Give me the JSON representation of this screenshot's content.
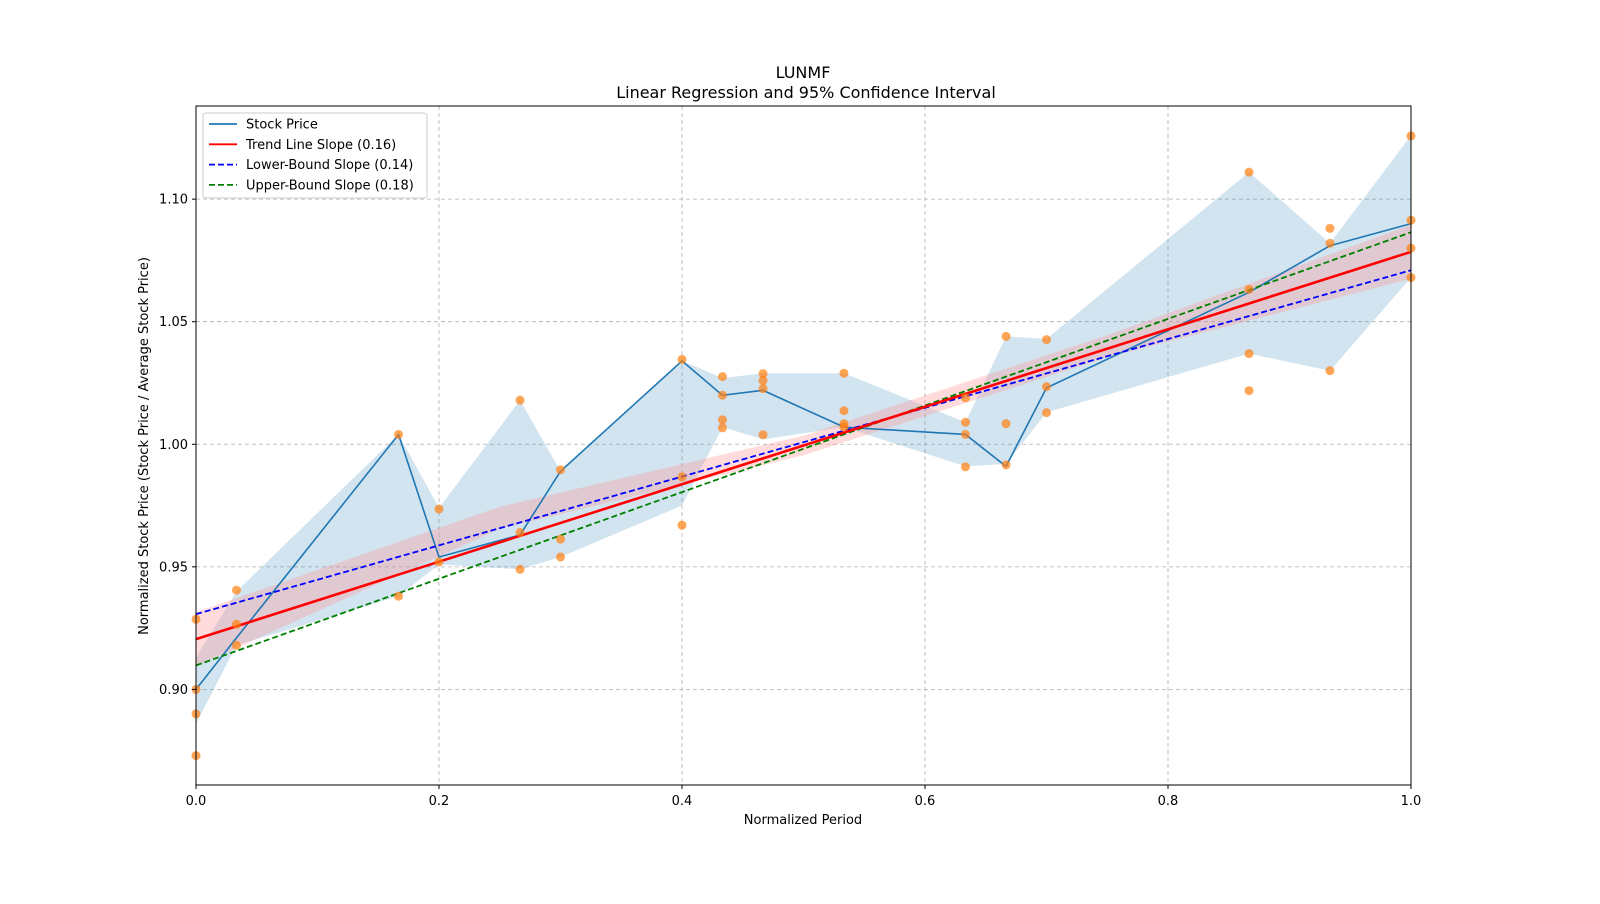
{
  "chart_data": {
    "type": "line",
    "title": "LUNMF",
    "subtitle": "Linear Regression and 95% Confidence Interval",
    "xlabel": "Normalized Period",
    "ylabel": "Normalized Stock Price (Stock Price / Average Stock Price)",
    "xlim": [
      0,
      1
    ],
    "ylim": [
      0.861,
      1.138
    ],
    "grid": true,
    "xticks": [
      0.0,
      0.2,
      0.4,
      0.6,
      0.8,
      1.0
    ],
    "xtick_labels": [
      "0.0",
      "0.2",
      "0.4",
      "0.6",
      "0.8",
      "1.0"
    ],
    "yticks": [
      0.9,
      0.95,
      1.0,
      1.05,
      1.1
    ],
    "ytick_labels": [
      "0.90",
      "0.95",
      "1.00",
      "1.05",
      "1.10"
    ],
    "legend_position": "top-left",
    "legend": [
      {
        "label": "Stock Price",
        "color": "#1f77b4",
        "style": "solid"
      },
      {
        "label": "Trend Line Slope (0.16)",
        "color": "#ff0000",
        "style": "solid"
      },
      {
        "label": "Lower-Bound Slope (0.14)",
        "color": "#0000ff",
        "style": "dashed"
      },
      {
        "label": "Upper-Bound Slope (0.18)",
        "color": "#008000",
        "style": "dashed"
      }
    ],
    "stock_price": {
      "x": [
        0,
        0.0333,
        0.1667,
        0.2,
        0.2667,
        0.3,
        0.4,
        0.4333,
        0.4667,
        0.5333,
        0.6333,
        0.6667,
        0.7,
        0.8667,
        0.9333,
        1.0
      ],
      "y": [
        0.9,
        0.921,
        1.004,
        0.954,
        0.963,
        0.989,
        1.034,
        1.02,
        1.022,
        1.007,
        1.004,
        0.991,
        1.023,
        1.062,
        1.081,
        1.09
      ],
      "band_lower": [
        0.886,
        0.918,
        0.938,
        0.951,
        0.949,
        0.954,
        0.975,
        1.007,
        1.002,
        1.007,
        0.991,
        0.992,
        1.013,
        1.037,
        1.03,
        1.068
      ],
      "band_upper": [
        0.913,
        0.94,
        1.004,
        0.974,
        1.018,
        0.989,
        1.034,
        1.027,
        1.029,
        1.029,
        1.009,
        1.044,
        1.043,
        1.111,
        1.082,
        1.126
      ],
      "band_color": "#1f77b4"
    },
    "scatter": {
      "color": "#ff7f0e",
      "points": [
        [
          0,
          0.9286
        ],
        [
          0,
          0.9
        ],
        [
          0,
          0.89
        ],
        [
          0,
          0.873
        ],
        [
          0.0333,
          0.9405
        ],
        [
          0.0333,
          0.9266
        ],
        [
          0.0333,
          0.918
        ],
        [
          0.1667,
          1.004
        ],
        [
          0.1667,
          0.938
        ],
        [
          0.2,
          0.9736
        ],
        [
          0.2,
          0.952
        ],
        [
          0.2667,
          1.018
        ],
        [
          0.2667,
          0.964
        ],
        [
          0.2667,
          0.949
        ],
        [
          0.3,
          0.9896
        ],
        [
          0.3,
          0.9613
        ],
        [
          0.3,
          0.954
        ],
        [
          0.4,
          1.0346
        ],
        [
          0.4,
          0.9867
        ],
        [
          0.4,
          0.967
        ],
        [
          0.4333,
          1.0276
        ],
        [
          0.4333,
          1.02
        ],
        [
          0.4333,
          1.01
        ],
        [
          0.4333,
          1.0067
        ],
        [
          0.4667,
          1.0288
        ],
        [
          0.4667,
          1.026
        ],
        [
          0.4667,
          1.0227
        ],
        [
          0.4667,
          1.0039
        ],
        [
          0.5333,
          1.029
        ],
        [
          0.5333,
          1.0137
        ],
        [
          0.5333,
          1.0084
        ],
        [
          0.5333,
          1.007
        ],
        [
          0.6333,
          1.019
        ],
        [
          0.6333,
          1.009
        ],
        [
          0.6333,
          1.004
        ],
        [
          0.6333,
          0.9908
        ],
        [
          0.6667,
          1.044
        ],
        [
          0.6667,
          1.0084
        ],
        [
          0.6667,
          0.9916
        ],
        [
          0.7,
          1.0427
        ],
        [
          0.7,
          1.0235
        ],
        [
          0.7,
          1.0129
        ],
        [
          0.8667,
          1.111
        ],
        [
          0.8667,
          1.0632
        ],
        [
          0.8667,
          1.037
        ],
        [
          0.8667,
          1.0219
        ],
        [
          0.9333,
          1.0881
        ],
        [
          0.9333,
          1.082
        ],
        [
          0.9333,
          1.03
        ],
        [
          1.0,
          1.1258
        ],
        [
          1.0,
          1.0914
        ],
        [
          1.0,
          1.08
        ],
        [
          1.0,
          1.068
        ]
      ]
    },
    "trend_line": {
      "x": [
        0,
        1
      ],
      "y": [
        0.9205,
        1.0785
      ],
      "slope": 0.16
    },
    "trend_ci": {
      "x": [
        0,
        0.25,
        0.5,
        0.75,
        1
      ],
      "lower": [
        0.9095,
        0.9655,
        0.9955,
        1.0355,
        1.0675
      ],
      "upper": [
        0.9315,
        0.9745,
        1.0035,
        1.0445,
        1.0895
      ],
      "color": "#ff9999"
    },
    "lower_bound_line": {
      "x": [
        0,
        1
      ],
      "y": [
        0.9307,
        1.071
      ],
      "slope": 0.14
    },
    "upper_bound_line": {
      "x": [
        0,
        1
      ],
      "y": [
        0.9098,
        1.0865
      ],
      "slope": 0.18
    }
  }
}
